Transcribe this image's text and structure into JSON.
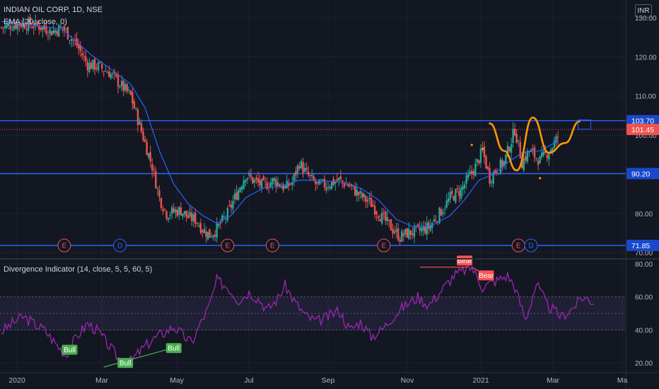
{
  "header": {
    "symbol_line": "INDIAN OIL CORP, 1D, NSE",
    "indicator_line": "EMA (20, close, 0)",
    "currency": "INR"
  },
  "lower_pane": {
    "title": "Divergence Indicator (14, close, 5, 5, 60, 5)"
  },
  "colors": {
    "background": "#131722",
    "grid": "#1e222d",
    "up_candle": "#26a69a",
    "down_candle": "#ef5350",
    "ema": "#2962ff",
    "level_line": "#2962ff",
    "pattern": "#ff9800",
    "oscillator": "#9c27b0",
    "bull": "#4caf50",
    "bear": "#ff5252",
    "text": "#b2b5be"
  },
  "chart_data": [
    {
      "type": "candlestick",
      "price_axis_ticks": [
        "130.00",
        "120.00",
        "110.00",
        "100.00",
        "90.00",
        "80.00",
        "70.00"
      ],
      "price_range": [
        68.6,
        134.5
      ],
      "x_axis_labels": [
        "2020",
        "Mar",
        "May",
        "Jul",
        "Sep",
        "Nov",
        "2021",
        "Mar",
        "Ma"
      ],
      "horizontal_levels": [
        103.7,
        90.2,
        71.85
      ],
      "level_labels": [
        "103.70",
        "90.20",
        "71.85"
      ],
      "last_price": 101.45,
      "last_price_label": "101.45",
      "close_path": [
        [
          0,
          127.5
        ],
        [
          10,
          128.5
        ],
        [
          20,
          128.0
        ],
        [
          28,
          126.5
        ],
        [
          34,
          127.5
        ],
        [
          42,
          123.0
        ],
        [
          48,
          118.0
        ],
        [
          54,
          117.5
        ],
        [
          60,
          116.0
        ],
        [
          66,
          113.0
        ],
        [
          72,
          110.0
        ],
        [
          76,
          104.0
        ],
        [
          80,
          98.0
        ],
        [
          84,
          92.0
        ],
        [
          88,
          84.0
        ],
        [
          92,
          80.0
        ],
        [
          96,
          80.5
        ],
        [
          100,
          80.8
        ],
        [
          104,
          79.0
        ],
        [
          108,
          78.5
        ],
        [
          112,
          76.0
        ],
        [
          116,
          74.5
        ],
        [
          120,
          76.0
        ],
        [
          126,
          80.0
        ],
        [
          132,
          86.0
        ],
        [
          136,
          90.0
        ],
        [
          140,
          88.5
        ],
        [
          146,
          87.0
        ],
        [
          152,
          88.5
        ],
        [
          158,
          86.5
        ],
        [
          162,
          88.0
        ],
        [
          166,
          93.0
        ],
        [
          170,
          90.0
        ],
        [
          176,
          87.0
        ],
        [
          182,
          87.5
        ],
        [
          188,
          88.5
        ],
        [
          194,
          87.0
        ],
        [
          200,
          84.5
        ],
        [
          206,
          82.5
        ],
        [
          212,
          79.0
        ],
        [
          218,
          76.0
        ],
        [
          222,
          74.0
        ],
        [
          226,
          75.0
        ],
        [
          232,
          75.5
        ],
        [
          238,
          76.5
        ],
        [
          244,
          80.0
        ],
        [
          250,
          84.0
        ],
        [
          256,
          86.0
        ],
        [
          260,
          89.0
        ],
        [
          264,
          92.0
        ],
        [
          268,
          96.0
        ],
        [
          272,
          89.0
        ],
        [
          276,
          91.5
        ],
        [
          280,
          93.0
        ],
        [
          286,
          101.5
        ],
        [
          290,
          93.0
        ],
        [
          294,
          96.0
        ],
        [
          300,
          93.5
        ],
        [
          306,
          96.5
        ],
        [
          310,
          99.5
        ]
      ],
      "ema_path": [
        [
          0,
          129.0
        ],
        [
          20,
          128.0
        ],
        [
          34,
          127.0
        ],
        [
          50,
          120.5
        ],
        [
          62,
          116.5
        ],
        [
          72,
          113.0
        ],
        [
          80,
          107.0
        ],
        [
          88,
          96.0
        ],
        [
          96,
          87.5
        ],
        [
          104,
          82.5
        ],
        [
          112,
          79.5
        ],
        [
          120,
          77.5
        ],
        [
          128,
          79.5
        ],
        [
          136,
          84.0
        ],
        [
          146,
          86.5
        ],
        [
          156,
          87.0
        ],
        [
          166,
          88.5
        ],
        [
          176,
          88.5
        ],
        [
          188,
          88.0
        ],
        [
          200,
          86.5
        ],
        [
          210,
          83.5
        ],
        [
          220,
          78.5
        ],
        [
          230,
          76.5
        ],
        [
          240,
          77.0
        ],
        [
          250,
          79.5
        ],
        [
          258,
          83.5
        ],
        [
          266,
          88.5
        ],
        [
          274,
          90.0
        ],
        [
          282,
          93.0
        ],
        [
          290,
          95.5
        ],
        [
          300,
          96.0
        ],
        [
          310,
          98.5
        ]
      ],
      "pattern_path": [
        [
          272,
          103.0
        ],
        [
          280,
          96.0
        ],
        [
          287,
          91.0
        ],
        [
          296,
          104.5
        ],
        [
          305,
          95.5
        ],
        [
          314,
          98.0
        ],
        [
          322,
          103.5
        ]
      ],
      "pattern_dots": [
        [
          262,
          97.5
        ],
        [
          268,
          96.5
        ],
        [
          300,
          89.0
        ]
      ],
      "earnings_markers": [
        {
          "label": "E",
          "x": 35
        },
        {
          "label": "D",
          "x": 66
        },
        {
          "label": "E",
          "x": 126
        },
        {
          "label": "E",
          "x": 151
        },
        {
          "label": "E",
          "x": 213
        },
        {
          "label": "E",
          "x": 288
        },
        {
          "label": "D",
          "x": 295
        }
      ]
    },
    {
      "type": "line",
      "name": "Divergence Indicator",
      "y_axis_ticks": [
        "80.00",
        "60.00",
        "40.00",
        "20.00"
      ],
      "y_range": [
        14.5,
        83
      ],
      "band": [
        40,
        60
      ],
      "midline": 50,
      "path": [
        [
          0,
          39.0
        ],
        [
          6,
          44.0
        ],
        [
          12,
          48.0
        ],
        [
          18,
          44.0
        ],
        [
          24,
          40.0
        ],
        [
          30,
          32.0
        ],
        [
          36,
          25.0
        ],
        [
          42,
          36.0
        ],
        [
          48,
          44.0
        ],
        [
          54,
          39.0
        ],
        [
          60,
          30.0
        ],
        [
          66,
          22.0
        ],
        [
          72,
          21.0
        ],
        [
          78,
          28.0
        ],
        [
          84,
          34.0
        ],
        [
          90,
          38.0
        ],
        [
          96,
          42.0
        ],
        [
          102,
          36.0
        ],
        [
          106,
          32.0
        ],
        [
          110,
          42.0
        ],
        [
          116,
          55.0
        ],
        [
          120,
          70.0
        ],
        [
          126,
          66.0
        ],
        [
          132,
          58.0
        ],
        [
          138,
          63.0
        ],
        [
          144,
          58.0
        ],
        [
          148,
          52.0
        ],
        [
          154,
          59.0
        ],
        [
          158,
          67.0
        ],
        [
          164,
          56.0
        ],
        [
          170,
          48.0
        ],
        [
          176,
          45.0
        ],
        [
          182,
          48.0
        ],
        [
          188,
          52.0
        ],
        [
          194,
          40.0
        ],
        [
          200,
          45.0
        ],
        [
          206,
          36.0
        ],
        [
          212,
          40.0
        ],
        [
          218,
          48.0
        ],
        [
          224,
          54.0
        ],
        [
          232,
          60.0
        ],
        [
          238,
          55.0
        ],
        [
          246,
          65.0
        ],
        [
          252,
          73.0
        ],
        [
          258,
          76.0
        ],
        [
          262,
          78.0
        ],
        [
          268,
          66.0
        ],
        [
          276,
          70.0
        ],
        [
          282,
          73.0
        ],
        [
          286,
          66.0
        ],
        [
          292,
          46.0
        ],
        [
          298,
          68.0
        ],
        [
          304,
          55.0
        ],
        [
          312,
          48.0
        ],
        [
          318,
          53.0
        ],
        [
          324,
          60.0
        ],
        [
          330,
          57.0
        ]
      ],
      "signals": [
        {
          "label": "Bull",
          "x": 38,
          "y": 28.0
        },
        {
          "label": "Bull",
          "x": 69,
          "y": 20.0
        },
        {
          "label": "Bull",
          "x": 96,
          "y": 29.0
        },
        {
          "label": "Bear",
          "x": 258,
          "y": 82.0
        },
        {
          "label": "Bear",
          "x": 270,
          "y": 73.0
        }
      ],
      "divergence_lines": [
        {
          "kind": "bull",
          "from": [
            57,
            17.5
          ],
          "to": [
            92,
            28.0
          ]
        },
        {
          "kind": "bear",
          "from": [
            233,
            78.0
          ],
          "to": [
            260,
            78.0
          ]
        },
        {
          "kind": "bear",
          "from": [
            262,
            78.0
          ],
          "to": [
            272,
            72.0
          ]
        }
      ]
    }
  ]
}
